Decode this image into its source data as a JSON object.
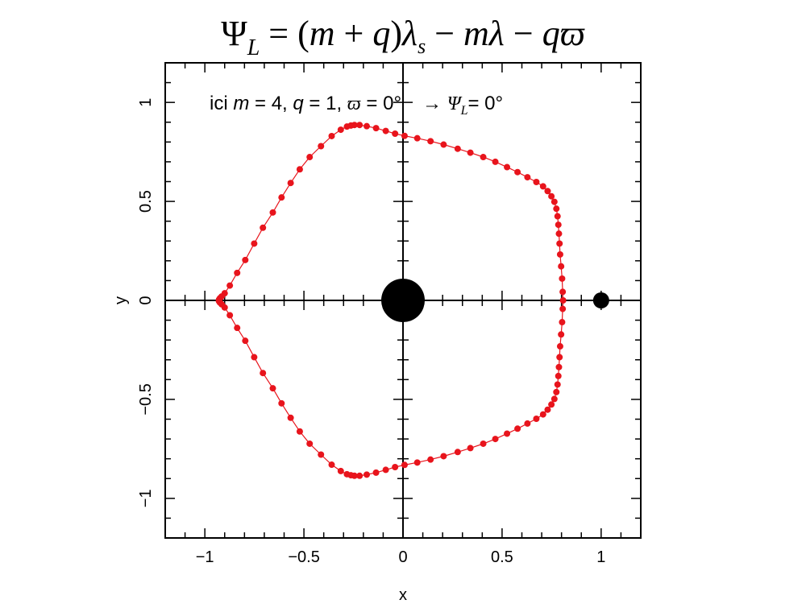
{
  "chart_data": {
    "type": "scatter",
    "title": "Ψ_L = (m + q)λ_s − mλ − qϖ",
    "title_parts": {
      "psi": "Ψ",
      "psi_sub": "L",
      "eq": " = (",
      "m": "m",
      "plus": " + ",
      "q": "q",
      "close": ")",
      "lambda_s": "λ",
      "lambda_s_sub": "s",
      "minus1": " − ",
      "m2": "m",
      "lambda": "λ",
      "minus2": " − ",
      "q2": "q",
      "varpi": "ϖ"
    },
    "annotation_parts": {
      "prefix": "ici ",
      "m_sym": "m",
      "m_val": " = 4, ",
      "q_sym": "q",
      "q_val": " = 1, ",
      "w_sym": "ϖ",
      "w_val": " = 0°",
      "arrow": "→ ",
      "psi_sym": "Ψ",
      "psi_sub": "L",
      "psi_val": "= 0°"
    },
    "xlabel": "x",
    "ylabel": "y",
    "xlim": [
      -1.2,
      1.2
    ],
    "ylim": [
      -1.2,
      1.2
    ],
    "xticks": [
      -1,
      -0.5,
      0,
      0.5,
      1
    ],
    "yticks": [
      -1,
      -0.5,
      0,
      0.5,
      1
    ],
    "xtick_labels": [
      "−1",
      "−0.5",
      "0",
      "0.5",
      "1"
    ],
    "ytick_labels": [
      "−1",
      "−0.5",
      "0",
      "0.5",
      "1"
    ],
    "grid": false,
    "colors": {
      "series": "#e8141c",
      "bodies": "#000000",
      "axes": "#000000"
    },
    "bodies": [
      {
        "x": 0,
        "y": 0,
        "size": "large"
      },
      {
        "x": 1,
        "y": 0,
        "size": "small"
      }
    ],
    "series": [
      {
        "x": [
          0.808,
          0.806,
          0.803,
          0.798,
          0.793,
          0.79,
          0.787,
          0.784,
          0.78,
          0.774,
          0.764,
          0.749,
          0.73,
          0.707,
          0.673,
          0.628,
          0.578,
          0.525,
          0.466,
          0.405,
          0.34,
          0.276,
          0.205,
          0.139,
          0.072,
          0.008,
          -0.04,
          -0.087,
          -0.136,
          -0.183,
          -0.219,
          -0.245,
          -0.263,
          -0.283,
          -0.314,
          -0.36,
          -0.414,
          -0.471,
          -0.521,
          -0.567,
          -0.613,
          -0.657,
          -0.707,
          -0.751,
          -0.796,
          -0.837,
          -0.874,
          -0.9,
          -0.915,
          -0.924,
          -0.929,
          -0.929,
          -0.924,
          -0.915,
          -0.9,
          -0.874,
          -0.837,
          -0.796,
          -0.751,
          -0.707,
          -0.657,
          -0.613,
          -0.567,
          -0.521,
          -0.471,
          -0.414,
          -0.36,
          -0.314,
          -0.283,
          -0.263,
          -0.245,
          -0.219,
          -0.183,
          -0.136,
          -0.087,
          -0.04,
          0.008,
          0.072,
          0.139,
          0.205,
          0.276,
          0.34,
          0.405,
          0.466,
          0.525,
          0.578,
          0.628,
          0.673,
          0.707,
          0.73,
          0.749,
          0.764,
          0.774,
          0.78,
          0.784,
          0.787,
          0.79,
          0.793,
          0.798,
          0.803,
          0.806
        ],
        "y": [
          0.0,
          -0.043,
          -0.11,
          -0.172,
          -0.232,
          -0.287,
          -0.337,
          -0.382,
          -0.425,
          -0.463,
          -0.498,
          -0.526,
          -0.552,
          -0.576,
          -0.598,
          -0.622,
          -0.648,
          -0.673,
          -0.7,
          -0.724,
          -0.746,
          -0.766,
          -0.787,
          -0.804,
          -0.819,
          -0.831,
          -0.842,
          -0.856,
          -0.87,
          -0.88,
          -0.886,
          -0.886,
          -0.883,
          -0.878,
          -0.862,
          -0.83,
          -0.779,
          -0.724,
          -0.662,
          -0.593,
          -0.52,
          -0.444,
          -0.367,
          -0.287,
          -0.204,
          -0.139,
          -0.075,
          -0.036,
          -0.02,
          -0.011,
          -0.003,
          0.003,
          0.011,
          0.02,
          0.036,
          0.075,
          0.139,
          0.204,
          0.287,
          0.367,
          0.444,
          0.52,
          0.593,
          0.662,
          0.724,
          0.779,
          0.83,
          0.862,
          0.878,
          0.883,
          0.886,
          0.886,
          0.88,
          0.87,
          0.856,
          0.842,
          0.831,
          0.819,
          0.804,
          0.787,
          0.766,
          0.746,
          0.724,
          0.7,
          0.673,
          0.648,
          0.622,
          0.598,
          0.576,
          0.552,
          0.526,
          0.498,
          0.463,
          0.425,
          0.382,
          0.337,
          0.287,
          0.232,
          0.172,
          0.11,
          0.043
        ]
      }
    ]
  }
}
